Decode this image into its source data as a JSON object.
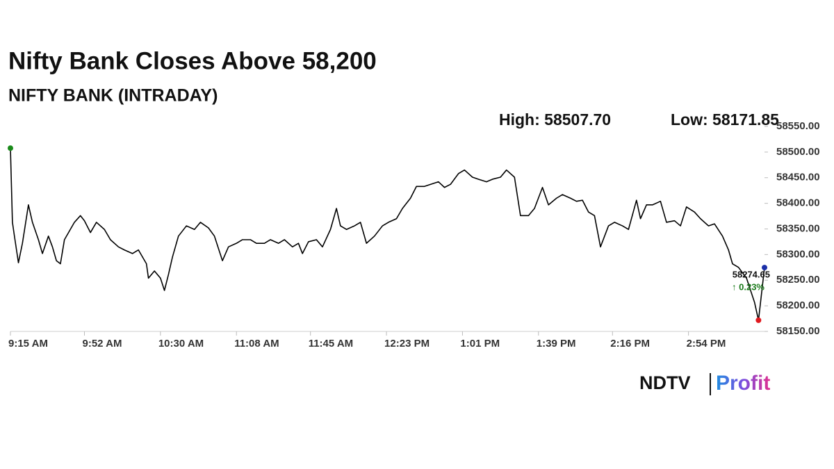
{
  "chart_data": {
    "type": "line",
    "title": "Nifty Bank Closes Above 58,200",
    "subtitle": "NIFTY BANK (INTRADAY)",
    "high_label": "High: 58507.70",
    "low_label": "Low: 58171.85",
    "close_label": "58274.65",
    "change_label": "↑ 0.23%",
    "logo": [
      "NDTV",
      "Profit"
    ],
    "x": [
      555,
      556,
      557,
      559,
      561,
      564,
      566,
      569,
      571,
      574,
      576,
      578,
      580,
      582,
      587,
      590,
      592,
      595,
      598,
      602,
      605,
      609,
      612,
      616,
      619,
      623,
      624,
      627,
      630,
      632,
      634,
      636,
      639,
      643,
      647,
      650,
      654,
      657,
      661,
      664,
      668,
      671,
      675,
      678,
      682,
      685,
      689,
      692,
      696,
      699,
      701,
      704,
      708,
      711,
      715,
      718,
      720,
      723,
      727,
      730,
      733,
      737,
      741,
      744,
      748,
      751,
      755,
      758,
      762,
      765,
      769,
      772,
      775,
      779,
      782,
      786,
      789,
      793,
      796,
      800,
      803,
      807,
      810,
      814,
      817,
      821,
      824,
      828,
      831,
      835,
      838,
      841,
      844,
      847,
      850,
      854,
      857,
      861,
      864,
      868,
      870,
      873,
      876,
      880,
      883,
      887,
      890,
      893,
      897,
      900,
      904,
      907,
      911,
      914,
      916,
      919,
      923,
      927,
      929,
      932
    ],
    "series": [
      {
        "color": "#000000",
        "values": [
          58507.7,
          58363,
          58336,
          58284,
          58322,
          58397,
          58363,
          58329,
          58302,
          58336,
          58315,
          58288,
          58282,
          58329,
          58363,
          58376,
          58366,
          58343,
          58363,
          58349,
          58329,
          58315,
          58309,
          58302,
          58309,
          58282,
          58254,
          58268,
          58254,
          58230,
          58261,
          58295,
          58336,
          58356,
          58349,
          58363,
          58352,
          58336,
          58288,
          58315,
          58322,
          58329,
          58329,
          58322,
          58322,
          58329,
          58322,
          58329,
          58315,
          58322,
          58302,
          58325,
          58329,
          58315,
          58349,
          58390,
          58356,
          58349,
          58356,
          58363,
          58322,
          58336,
          58356,
          58363,
          58370,
          58390,
          58410,
          58433,
          58433,
          58437,
          58442,
          58431,
          58437,
          58458,
          58465,
          58451,
          58447,
          58442,
          58447,
          58451,
          58465,
          58451,
          58376,
          58376,
          58390,
          58431,
          58397,
          58410,
          58417,
          58410,
          58404,
          58406,
          58383,
          58376,
          58315,
          58356,
          58363,
          58356,
          58349,
          58406,
          58370,
          58397,
          58397,
          58404,
          58363,
          58366,
          58356,
          58393,
          58383,
          58370,
          58356,
          58360,
          58336,
          58309,
          58282,
          58275,
          58254,
          58207,
          58171.85,
          58274.65
        ]
      }
    ],
    "open_marker_color": "#1a8a1a",
    "low_marker_color": "#e0191f",
    "close_marker_color": "#1b2fa8",
    "xlim": [
      555,
      932
    ],
    "xticks": [
      {
        "value": 555,
        "label": "9:15 AM"
      },
      {
        "value": 592,
        "label": "9:52 AM"
      },
      {
        "value": 630,
        "label": "10:30 AM"
      },
      {
        "value": 668,
        "label": "11:08 AM"
      },
      {
        "value": 705,
        "label": "11:45 AM"
      },
      {
        "value": 743,
        "label": "12:23 PM"
      },
      {
        "value": 781,
        "label": "1:01 PM"
      },
      {
        "value": 819,
        "label": "1:39 PM"
      },
      {
        "value": 856,
        "label": "2:16 PM"
      },
      {
        "value": 894,
        "label": "2:54 PM"
      }
    ],
    "ylim": [
      58150,
      58550
    ],
    "yticks": [
      {
        "value": 58150,
        "label": "58150.00"
      },
      {
        "value": 58200,
        "label": "58200.00"
      },
      {
        "value": 58250,
        "label": "58250.00"
      },
      {
        "value": 58300,
        "label": "58300.00"
      },
      {
        "value": 58350,
        "label": "58350.00"
      },
      {
        "value": 58400,
        "label": "58400.00"
      },
      {
        "value": 58450,
        "label": "58450.00"
      },
      {
        "value": 58500,
        "label": "58500.00"
      },
      {
        "value": 58550,
        "label": "58550.00"
      }
    ]
  }
}
